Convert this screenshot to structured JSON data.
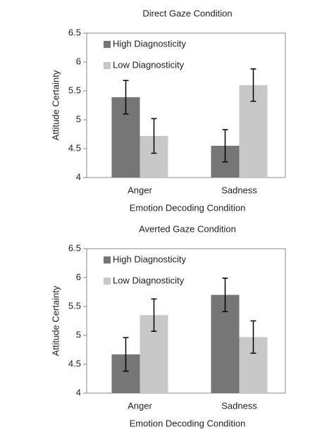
{
  "chart_data": [
    {
      "type": "bar",
      "title": "Direct Gaze Condition",
      "xlabel": "Emotion Decoding Condition",
      "ylabel": "Attitude Certainty",
      "categories": [
        "Anger",
        "Sadness"
      ],
      "series": [
        {
          "name": "High Diagnosticity",
          "color": "#767676",
          "values": [
            5.39,
            4.55
          ],
          "errors": [
            0.29,
            0.28
          ]
        },
        {
          "name": "Low Diagnosticity",
          "color": "#c8c8c8",
          "values": [
            4.72,
            5.6
          ],
          "errors": [
            0.3,
            0.28
          ]
        }
      ],
      "ylim": [
        4,
        6.5
      ],
      "yticks": [
        4,
        4.5,
        5,
        5.5,
        6,
        6.5
      ],
      "legend": "upper left"
    },
    {
      "type": "bar",
      "title": "Averted Gaze Condition",
      "xlabel": "Emotion Decoding Condition",
      "ylabel": "Attitude Certainty",
      "categories": [
        "Anger",
        "Sadness"
      ],
      "series": [
        {
          "name": "High Diagnosticity",
          "color": "#767676",
          "values": [
            4.67,
            5.7
          ],
          "errors": [
            0.29,
            0.29
          ]
        },
        {
          "name": "Low Diagnosticity",
          "color": "#c8c8c8",
          "values": [
            5.35,
            4.97
          ],
          "errors": [
            0.28,
            0.28
          ]
        }
      ],
      "ylim": [
        4,
        6.5
      ],
      "yticks": [
        4,
        4.5,
        5,
        5.5,
        6,
        6.5
      ],
      "legend": "upper left"
    }
  ]
}
